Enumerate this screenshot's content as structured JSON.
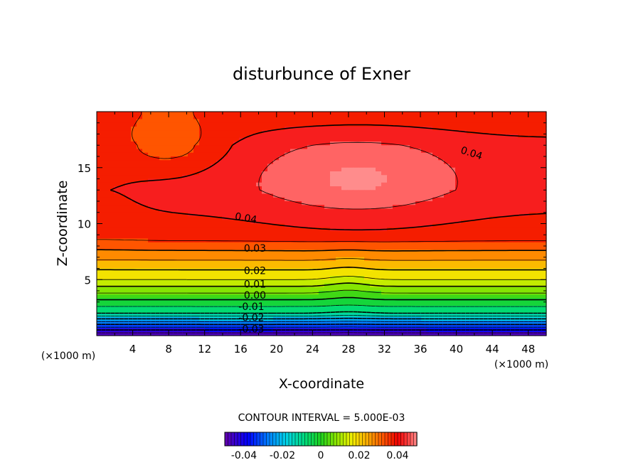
{
  "chart_data": {
    "type": "contour",
    "title": "disturbunce of Exner",
    "xlabel": "X-coordinate",
    "ylabel": "Z-coordinate",
    "x_unit_left": "(×1000 m)",
    "x_unit_right": "(×1000 m)",
    "xlim": [
      0,
      50
    ],
    "ylim": [
      0,
      20
    ],
    "x_ticks": [
      4,
      8,
      12,
      16,
      20,
      24,
      28,
      32,
      36,
      40,
      44,
      48
    ],
    "y_ticks": [
      5,
      10,
      15
    ],
    "value_range": [
      -0.05,
      0.05
    ],
    "contour_interval_text": "CONTOUR INTERVAL = 5.000E-03",
    "contour_labels": [
      {
        "text": "0.04",
        "x": 41.7,
        "z": 16.0,
        "angle": 18
      },
      {
        "text": "0.04",
        "x": 16.6,
        "z": 10.2,
        "angle": 10
      },
      {
        "text": "0.03",
        "x": 17.6,
        "z": 7.5,
        "angle": 0
      },
      {
        "text": "0.02",
        "x": 17.6,
        "z": 5.5,
        "angle": 0
      },
      {
        "text": "0.01",
        "x": 17.6,
        "z": 4.3,
        "angle": 0
      },
      {
        "text": "0.00",
        "x": 17.6,
        "z": 3.3,
        "angle": 0
      },
      {
        "text": "-0.01",
        "x": 17.2,
        "z": 2.3,
        "angle": 0
      },
      {
        "text": "-0.02",
        "x": 17.2,
        "z": 1.3,
        "angle": 0
      },
      {
        "text": "-0.03",
        "x": 17.2,
        "z": 0.3,
        "angle": 0
      }
    ],
    "colorbar": {
      "tick_labels": [
        "-0.04",
        "-0.02",
        "0",
        "0.02",
        "0.04"
      ],
      "tick_values": [
        -0.04,
        -0.02,
        0,
        0.02,
        0.04
      ]
    }
  }
}
